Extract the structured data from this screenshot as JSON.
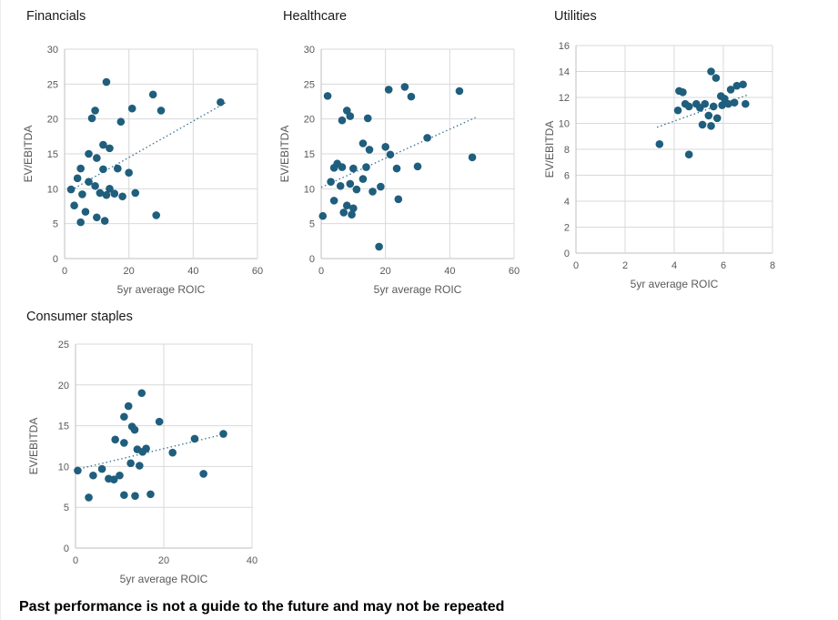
{
  "page": {
    "footer": "Past performance is not a guide to the future and may not be repeated"
  },
  "colors": {
    "dot": "#1f5e7d",
    "trend": "#35718e",
    "grid": "#d9d9d9",
    "axis_line": "#bfbfbf",
    "tick_text": "#595959",
    "axis_title_text": "#595959",
    "chart_title_text": "#1a1a1a"
  },
  "chart_data": [
    {
      "type": "scatter",
      "title": "Financials",
      "xlabel": "5yr average ROIC",
      "ylabel": "EV/EBITDA",
      "xlim": [
        0,
        60
      ],
      "ylim": [
        0,
        30
      ],
      "xticks": [
        0,
        20,
        40,
        60
      ],
      "yticks": [
        0,
        5,
        10,
        15,
        20,
        25,
        30
      ],
      "grid": true,
      "legend": "none",
      "trend": {
        "x": [
          2,
          50
        ],
        "y": [
          9.8,
          22.3
        ]
      },
      "points": [
        [
          13,
          25.3
        ],
        [
          27.5,
          23.5
        ],
        [
          9.5,
          21.2
        ],
        [
          21,
          21.5
        ],
        [
          30,
          21.2
        ],
        [
          48.5,
          22.4
        ],
        [
          8.5,
          20.1
        ],
        [
          17.5,
          19.6
        ],
        [
          12,
          16.3
        ],
        [
          14,
          15.8
        ],
        [
          7.5,
          15
        ],
        [
          10,
          14.4
        ],
        [
          5,
          12.9
        ],
        [
          12,
          12.8
        ],
        [
          16.5,
          12.9
        ],
        [
          20,
          12.3
        ],
        [
          4,
          11.5
        ],
        [
          7.5,
          11
        ],
        [
          9.5,
          10.4
        ],
        [
          14,
          10
        ],
        [
          2,
          9.9
        ],
        [
          5.5,
          9.2
        ],
        [
          11,
          9.4
        ],
        [
          13,
          9.1
        ],
        [
          15.5,
          9.3
        ],
        [
          18,
          8.9
        ],
        [
          22,
          9.4
        ],
        [
          3,
          7.6
        ],
        [
          6.5,
          6.7
        ],
        [
          10,
          5.9
        ],
        [
          5,
          5.2
        ],
        [
          12.5,
          5.4
        ],
        [
          28.5,
          6.2
        ]
      ]
    },
    {
      "type": "scatter",
      "title": "Healthcare",
      "xlabel": "5yr average ROIC",
      "ylabel": "EV/EBITDA",
      "xlim": [
        0,
        60
      ],
      "ylim": [
        0,
        30
      ],
      "xticks": [
        0,
        20,
        40,
        60
      ],
      "yticks": [
        0,
        5,
        10,
        15,
        20,
        25,
        30
      ],
      "grid": true,
      "legend": "none",
      "trend": {
        "x": [
          0,
          48
        ],
        "y": [
          10.2,
          20.2
        ]
      },
      "points": [
        [
          2,
          23.3
        ],
        [
          21,
          24.2
        ],
        [
          26,
          24.6
        ],
        [
          43,
          24
        ],
        [
          28,
          23.2
        ],
        [
          8,
          21.2
        ],
        [
          9,
          20.4
        ],
        [
          6.5,
          19.8
        ],
        [
          14.5,
          20.1
        ],
        [
          33,
          17.3
        ],
        [
          13,
          16.5
        ],
        [
          15,
          15.6
        ],
        [
          20,
          16
        ],
        [
          21.5,
          14.9
        ],
        [
          47,
          14.5
        ],
        [
          5,
          13.6
        ],
        [
          4,
          13
        ],
        [
          6.5,
          13.1
        ],
        [
          10,
          12.9
        ],
        [
          14,
          13.1
        ],
        [
          23.5,
          12.9
        ],
        [
          30,
          13.2
        ],
        [
          13,
          11.4
        ],
        [
          3,
          11
        ],
        [
          6,
          10.4
        ],
        [
          9,
          10.7
        ],
        [
          11,
          9.9
        ],
        [
          16,
          9.6
        ],
        [
          18.5,
          10.3
        ],
        [
          4,
          8.3
        ],
        [
          8,
          7.6
        ],
        [
          10,
          7.2
        ],
        [
          24,
          8.5
        ],
        [
          0.5,
          6.1
        ],
        [
          7,
          6.6
        ],
        [
          9.5,
          6.3
        ],
        [
          18,
          1.7
        ]
      ]
    },
    {
      "type": "scatter",
      "title": "Utilities",
      "xlabel": "5yr average ROIC",
      "ylabel": "EV/EBITDA",
      "xlim": [
        0,
        8
      ],
      "ylim": [
        0,
        16
      ],
      "xticks": [
        0,
        2,
        4,
        6,
        8
      ],
      "yticks": [
        0,
        2,
        4,
        6,
        8,
        10,
        12,
        14,
        16
      ],
      "grid": true,
      "legend": "none",
      "trend": {
        "x": [
          3.3,
          7.0
        ],
        "y": [
          9.7,
          12.2
        ]
      },
      "points": [
        [
          3.4,
          8.4
        ],
        [
          5.5,
          14
        ],
        [
          5.7,
          13.5
        ],
        [
          4.2,
          12.5
        ],
        [
          4.35,
          12.4
        ],
        [
          6.55,
          12.9
        ],
        [
          6.8,
          13
        ],
        [
          6.3,
          12.6
        ],
        [
          5.9,
          12.1
        ],
        [
          6.05,
          11.9
        ],
        [
          4.45,
          11.5
        ],
        [
          4.6,
          11.3
        ],
        [
          4.9,
          11.5
        ],
        [
          5.05,
          11.2
        ],
        [
          5.25,
          11.5
        ],
        [
          4.15,
          11
        ],
        [
          5.6,
          11.3
        ],
        [
          5.95,
          11.4
        ],
        [
          6.2,
          11.5
        ],
        [
          6.45,
          11.6
        ],
        [
          5.4,
          10.6
        ],
        [
          5.75,
          10.4
        ],
        [
          5.15,
          9.9
        ],
        [
          5.5,
          9.8
        ],
        [
          4.6,
          7.6
        ],
        [
          6.9,
          11.5
        ]
      ]
    },
    {
      "type": "scatter",
      "title": "Consumer staples",
      "xlabel": "5yr average ROIC",
      "ylabel": "EV/EBITDA",
      "xlim": [
        0,
        40
      ],
      "ylim": [
        0,
        25
      ],
      "xticks": [
        0,
        20,
        40
      ],
      "yticks": [
        0,
        5,
        10,
        15,
        20,
        25
      ],
      "grid": true,
      "legend": "none",
      "trend": {
        "x": [
          0,
          34
        ],
        "y": [
          9.6,
          14.0
        ]
      },
      "points": [
        [
          15,
          19
        ],
        [
          12,
          17.4
        ],
        [
          11,
          16.1
        ],
        [
          19,
          15.5
        ],
        [
          12.8,
          14.9
        ],
        [
          13.4,
          14.5
        ],
        [
          9,
          13.3
        ],
        [
          27,
          13.4
        ],
        [
          33.5,
          14
        ],
        [
          11,
          12.9
        ],
        [
          14,
          12.1
        ],
        [
          16,
          12.2
        ],
        [
          15.2,
          11.8
        ],
        [
          22,
          11.7
        ],
        [
          12.5,
          10.4
        ],
        [
          14.5,
          10.1
        ],
        [
          6,
          9.7
        ],
        [
          0.5,
          9.5
        ],
        [
          10,
          8.9
        ],
        [
          4,
          8.9
        ],
        [
          7.5,
          8.5
        ],
        [
          8.7,
          8.4
        ],
        [
          29,
          9.1
        ],
        [
          11,
          6.5
        ],
        [
          13.5,
          6.4
        ],
        [
          17,
          6.6
        ],
        [
          3,
          6.2
        ]
      ]
    }
  ]
}
